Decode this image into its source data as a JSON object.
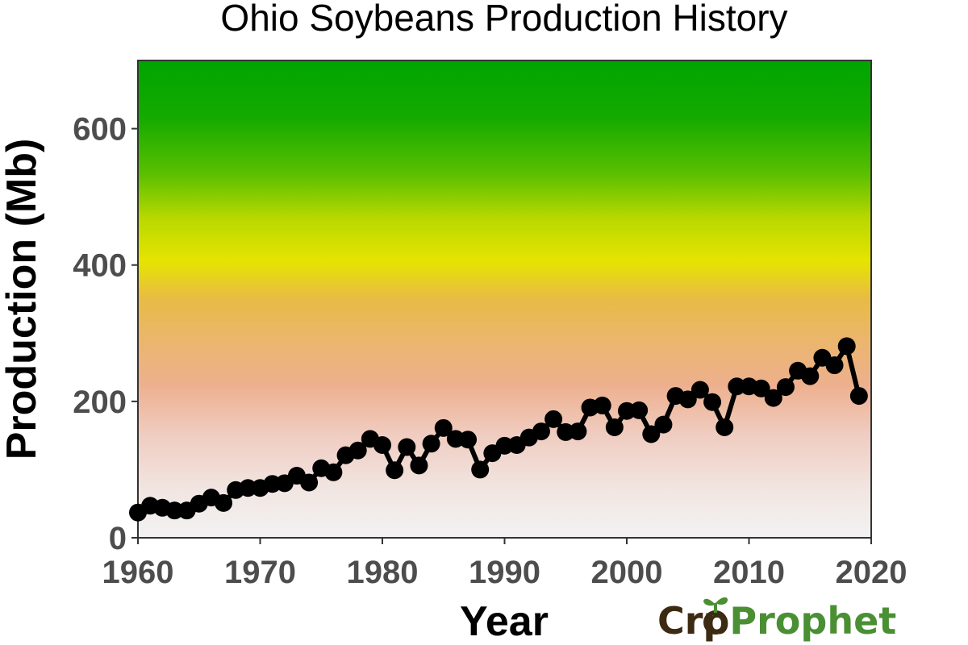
{
  "chart_data": {
    "type": "line",
    "title": "Ohio Soybeans Production History",
    "xlabel": "Year",
    "ylabel": "Production (Mb)",
    "xlim": [
      1960,
      2020
    ],
    "ylim": [
      0,
      700
    ],
    "xticks": [
      1960,
      1970,
      1980,
      1990,
      2000,
      2010,
      2020
    ],
    "yticks": [
      0,
      200,
      400,
      600
    ],
    "grid": false,
    "background_gradient": [
      "#f2f2f2",
      "#f0d0c8",
      "#edb08e",
      "#e8b847",
      "#e6e600",
      "#55c000",
      "#00a500"
    ],
    "line_color": "#000000",
    "series": [
      {
        "x": [
          1960,
          1961,
          1962,
          1963,
          1964,
          1965,
          1966,
          1967,
          1968,
          1969,
          1970,
          1971,
          1972,
          1973,
          1974,
          1975,
          1976,
          1977,
          1978,
          1979,
          1980,
          1981,
          1982,
          1983,
          1984,
          1985,
          1986,
          1987,
          1988,
          1989,
          1990,
          1991,
          1992,
          1993,
          1994,
          1995,
          1996,
          1997,
          1998,
          1999,
          2000,
          2001,
          2002,
          2003,
          2004,
          2005,
          2006,
          2007,
          2008,
          2009,
          2010,
          2011,
          2012,
          2013,
          2014,
          2015,
          2016,
          2017,
          2018,
          2019
        ],
        "values": [
          37,
          47,
          44,
          40,
          40,
          50,
          59,
          51,
          70,
          73,
          73,
          79,
          80,
          91,
          81,
          102,
          96,
          121,
          128,
          145,
          136,
          99,
          133,
          106,
          138,
          161,
          145,
          144,
          100,
          124,
          135,
          136,
          147,
          156,
          174,
          155,
          156,
          191,
          194,
          162,
          186,
          187,
          152,
          166,
          208,
          203,
          217,
          199,
          162,
          222,
          222,
          219,
          205,
          221,
          245,
          237,
          264,
          253,
          281,
          208
        ]
      }
    ]
  },
  "logo": {
    "crop_pre": "Cr",
    "crop_post": "p",
    "prophet": "Prophet",
    "brown": "#3d2a12",
    "green": "#4a8f34"
  }
}
